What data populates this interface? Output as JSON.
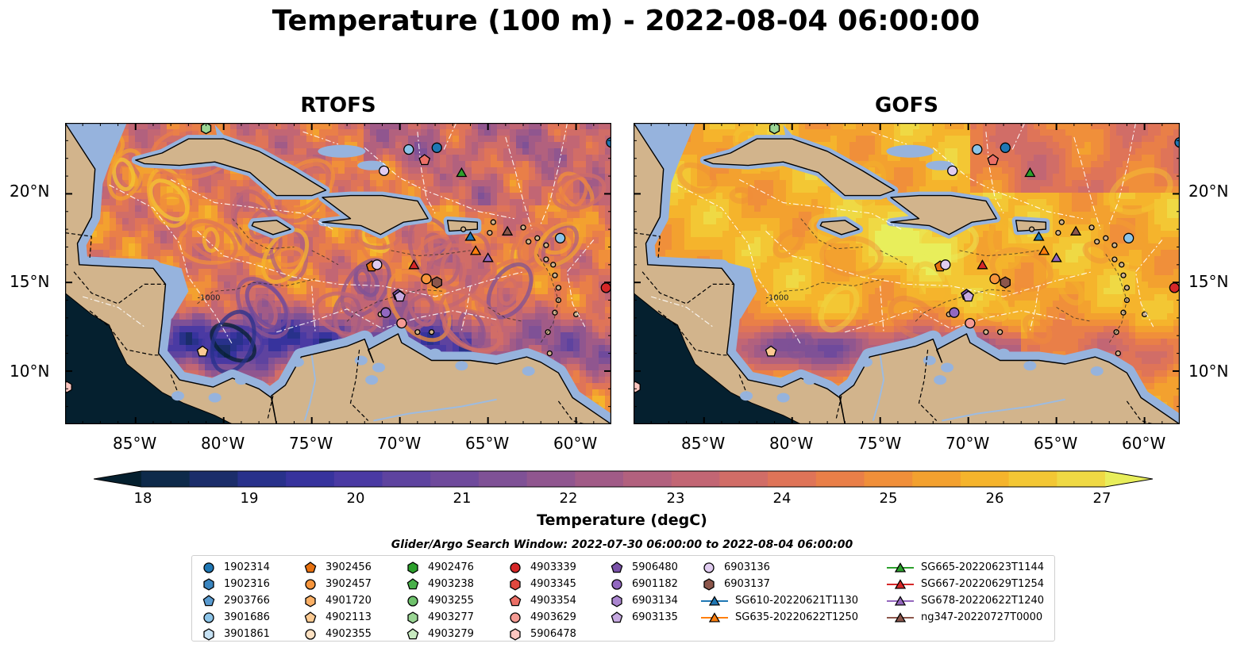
{
  "title": "Temperature (100 m) - 2022-08-04 06:00:00",
  "panels": [
    {
      "id": "rtofs",
      "title": "RTOFS"
    },
    {
      "id": "gofs",
      "title": "GOFS"
    }
  ],
  "map": {
    "lon_range": [
      -89,
      -58
    ],
    "lat_range": [
      7,
      24
    ],
    "lon_ticks": [
      "85°W",
      "80°W",
      "75°W",
      "70°W",
      "65°W",
      "60°W"
    ],
    "lat_ticks": [
      "20°N",
      "15°N",
      "10°N"
    ],
    "colors": {
      "land": "#d2b48c",
      "shallow_water": "#96b3dd",
      "coast": "#000000"
    },
    "bathymetry_contours": [
      "-1000"
    ]
  },
  "colorbar": {
    "label": "Temperature (degC)",
    "ticks": [
      "18",
      "19",
      "20",
      "21",
      "22",
      "23",
      "24",
      "25",
      "26",
      "27"
    ],
    "range": [
      18,
      27
    ],
    "colormap": "thermal",
    "colors": [
      "#05202f",
      "#0e2a4a",
      "#1b2d6a",
      "#28318b",
      "#37339d",
      "#4a3aa3",
      "#5e439f",
      "#6f4a9c",
      "#7f5196",
      "#90568f",
      "#a15b87",
      "#b2617e",
      "#c26674",
      "#d16d67",
      "#df7458",
      "#e97f48",
      "#f08f3a",
      "#f3a12f",
      "#f5b42c",
      "#f3c734",
      "#efd944",
      "#e8ee5b"
    ]
  },
  "window_text": "Glider/Argo Search Window: 2022-07-30 06:00:00 to 2022-08-04 06:00:00",
  "legend": {
    "columns": [
      [
        {
          "label": "1902314",
          "marker": "circle",
          "color": "#1f77b4"
        },
        {
          "label": "1902316",
          "marker": "hexagon",
          "color": "#3a85bf"
        },
        {
          "label": "2903766",
          "marker": "pentagon",
          "color": "#5a9bd0"
        },
        {
          "label": "3901686",
          "marker": "circle",
          "color": "#8cc4e8"
        },
        {
          "label": "3901861",
          "marker": "hexagon",
          "color": "#c6e1f3"
        }
      ],
      [
        {
          "label": "3902456",
          "marker": "pentagon",
          "color": "#e6700f"
        },
        {
          "label": "3902457",
          "marker": "circle",
          "color": "#f7953c"
        },
        {
          "label": "4901720",
          "marker": "hexagon",
          "color": "#fbb066"
        },
        {
          "label": "4902113",
          "marker": "pentagon",
          "color": "#fcca92"
        },
        {
          "label": "4902355",
          "marker": "circle",
          "color": "#fde1c2"
        }
      ],
      [
        {
          "label": "4902476",
          "marker": "hexagon",
          "color": "#2ca02c"
        },
        {
          "label": "4903238",
          "marker": "pentagon",
          "color": "#49b04a"
        },
        {
          "label": "4903255",
          "marker": "circle",
          "color": "#6fc26c"
        },
        {
          "label": "4903277",
          "marker": "hexagon",
          "color": "#9ad594"
        },
        {
          "label": "4903279",
          "marker": "pentagon",
          "color": "#c8eac0"
        }
      ],
      [
        {
          "label": "4903339",
          "marker": "circle",
          "color": "#d62728"
        },
        {
          "label": "4903345",
          "marker": "hexagon",
          "color": "#e0483f"
        },
        {
          "label": "4903354",
          "marker": "pentagon",
          "color": "#eb6f66"
        },
        {
          "label": "4903629",
          "marker": "circle",
          "color": "#f49a93"
        },
        {
          "label": "5906478",
          "marker": "hexagon",
          "color": "#fbc6c0"
        }
      ],
      [
        {
          "label": "5906480",
          "marker": "pentagon",
          "color": "#7a52a8"
        },
        {
          "label": "6901182",
          "marker": "circle",
          "color": "#9268c0"
        },
        {
          "label": "6903134",
          "marker": "hexagon",
          "color": "#ab86d0"
        },
        {
          "label": "6903135",
          "marker": "pentagon",
          "color": "#c6a9e0"
        }
      ],
      [
        {
          "label": "6903136",
          "marker": "circle",
          "color": "#e0ccf0"
        },
        {
          "label": "6903137",
          "marker": "hexagon",
          "color": "#8c564b"
        },
        {
          "label": "SG610-20220621T1130",
          "marker": "triangle",
          "color": "#1f77b4",
          "line": true
        },
        {
          "label": "SG635-20220622T1250",
          "marker": "triangle",
          "color": "#ff7f0e",
          "line": true
        }
      ],
      [
        {
          "label": "SG665-20220623T1144",
          "marker": "triangle",
          "color": "#2ca02c",
          "line": true
        },
        {
          "label": "SG667-20220629T1254",
          "marker": "triangle",
          "color": "#d62728",
          "line": true
        },
        {
          "label": "SG678-20220622T1240",
          "marker": "triangle",
          "color": "#9467bd",
          "line": true
        },
        {
          "label": "ng347-20220727T0000",
          "marker": "triangle",
          "color": "#8c564b",
          "line": true
        }
      ]
    ]
  },
  "observations": [
    {
      "label": "1902314",
      "lon": -67.9,
      "lat": 22.6
    },
    {
      "label": "3901686",
      "lon": -69.5,
      "lat": 22.5
    },
    {
      "label": "4903354",
      "lon": -68.6,
      "lat": 21.9
    },
    {
      "label": "6903136",
      "lon": -70.9,
      "lat": 21.3
    },
    {
      "label": "SG665-20220623T1144",
      "lon": -66.5,
      "lat": 21.2
    },
    {
      "label": "3901686",
      "lon": -60.9,
      "lat": 17.5
    },
    {
      "label": "SG610-20220621T1130",
      "lon": -66.0,
      "lat": 17.6
    },
    {
      "label": "ng347-20220727T0000",
      "lon": -63.9,
      "lat": 17.9
    },
    {
      "label": "SG635-20220622T1250",
      "lon": -65.7,
      "lat": 16.8
    },
    {
      "label": "SG678-20220622T1240",
      "lon": -65.0,
      "lat": 16.4
    },
    {
      "label": "SG667-20220629T1254",
      "lon": -69.2,
      "lat": 16.0
    },
    {
      "label": "3902456",
      "lon": -71.6,
      "lat": 15.9
    },
    {
      "label": "6903136",
      "lon": -71.3,
      "lat": 16.0
    },
    {
      "label": "3902457",
      "lon": -68.5,
      "lat": 15.2
    },
    {
      "label": "6903137",
      "lon": -67.9,
      "lat": 15.0
    },
    {
      "label": "5906480",
      "lon": -70.1,
      "lat": 14.3
    },
    {
      "label": "6903135",
      "lon": -70.0,
      "lat": 14.2
    },
    {
      "label": "6901182",
      "lon": -70.8,
      "lat": 13.3
    },
    {
      "label": "4903629",
      "lon": -69.9,
      "lat": 12.7
    },
    {
      "label": "4902113",
      "lon": -81.2,
      "lat": 11.1
    },
    {
      "label": "4903339",
      "lon": -58.3,
      "lat": 14.7
    },
    {
      "label": "1902314",
      "lon": -58.0,
      "lat": 22.9
    },
    {
      "label": "4903277",
      "lon": -81.0,
      "lat": 23.7
    },
    {
      "label": "5906478",
      "lon": -88.9,
      "lat": 9.1
    }
  ]
}
